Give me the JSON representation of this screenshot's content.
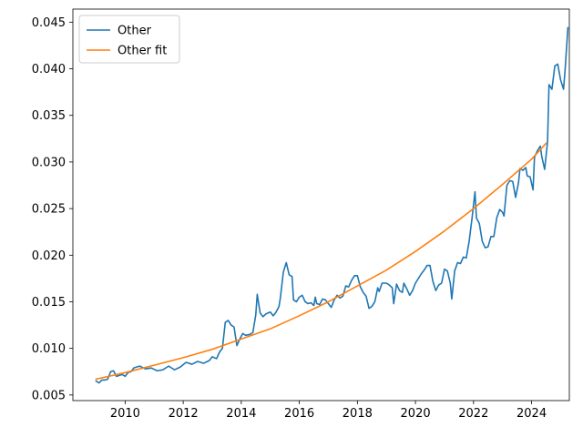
{
  "chart_data": {
    "type": "line",
    "title": "",
    "xlabel": "",
    "ylabel": "",
    "xlim": [
      2008.2,
      2025.3
    ],
    "ylim": [
      0.0044,
      0.0464
    ],
    "grid": false,
    "legend_position": "top-left",
    "x_ticks": [
      {
        "value": 2010,
        "label": "2010"
      },
      {
        "value": 2012,
        "label": "2012"
      },
      {
        "value": 2014,
        "label": "2014"
      },
      {
        "value": 2016,
        "label": "2016"
      },
      {
        "value": 2018,
        "label": "2018"
      },
      {
        "value": 2020,
        "label": "2020"
      },
      {
        "value": 2022,
        "label": "2022"
      },
      {
        "value": 2024,
        "label": "2024"
      }
    ],
    "y_ticks": [
      {
        "value": 0.005,
        "label": "0.005"
      },
      {
        "value": 0.01,
        "label": "0.010"
      },
      {
        "value": 0.015,
        "label": "0.015"
      },
      {
        "value": 0.02,
        "label": "0.020"
      },
      {
        "value": 0.025,
        "label": "0.025"
      },
      {
        "value": 0.03,
        "label": "0.030"
      },
      {
        "value": 0.035,
        "label": "0.035"
      },
      {
        "value": 0.04,
        "label": "0.040"
      },
      {
        "value": 0.045,
        "label": "0.045"
      }
    ],
    "series": [
      {
        "name": "Other",
        "color": "#1f77b4",
        "points": [
          [
            2009.0,
            0.0065
          ],
          [
            2009.1,
            0.0063
          ],
          [
            2009.2,
            0.0066
          ],
          [
            2009.3,
            0.0066
          ],
          [
            2009.4,
            0.0067
          ],
          [
            2009.5,
            0.0075
          ],
          [
            2009.6,
            0.0076
          ],
          [
            2009.7,
            0.007
          ],
          [
            2009.8,
            0.0071
          ],
          [
            2009.9,
            0.0072
          ],
          [
            2010.0,
            0.007
          ],
          [
            2010.1,
            0.0074
          ],
          [
            2010.2,
            0.0075
          ],
          [
            2010.3,
            0.0079
          ],
          [
            2010.5,
            0.0081
          ],
          [
            2010.7,
            0.0078
          ],
          [
            2010.9,
            0.0079
          ],
          [
            2011.1,
            0.0076
          ],
          [
            2011.3,
            0.0077
          ],
          [
            2011.5,
            0.0081
          ],
          [
            2011.7,
            0.0077
          ],
          [
            2011.9,
            0.008
          ],
          [
            2012.1,
            0.0085
          ],
          [
            2012.3,
            0.0083
          ],
          [
            2012.5,
            0.0086
          ],
          [
            2012.7,
            0.0084
          ],
          [
            2012.9,
            0.0087
          ],
          [
            2013.0,
            0.0091
          ],
          [
            2013.15,
            0.0089
          ],
          [
            2013.25,
            0.0096
          ],
          [
            2013.35,
            0.01
          ],
          [
            2013.45,
            0.0128
          ],
          [
            2013.55,
            0.013
          ],
          [
            2013.65,
            0.0125
          ],
          [
            2013.75,
            0.0123
          ],
          [
            2013.85,
            0.0103
          ],
          [
            2013.95,
            0.011
          ],
          [
            2014.05,
            0.0116
          ],
          [
            2014.15,
            0.0114
          ],
          [
            2014.3,
            0.0115
          ],
          [
            2014.4,
            0.0117
          ],
          [
            2014.5,
            0.0136
          ],
          [
            2014.55,
            0.0158
          ],
          [
            2014.65,
            0.0138
          ],
          [
            2014.75,
            0.0134
          ],
          [
            2014.85,
            0.0137
          ],
          [
            2015.0,
            0.0139
          ],
          [
            2015.1,
            0.0135
          ],
          [
            2015.2,
            0.0139
          ],
          [
            2015.3,
            0.0145
          ],
          [
            2015.35,
            0.0155
          ],
          [
            2015.45,
            0.0182
          ],
          [
            2015.55,
            0.0192
          ],
          [
            2015.65,
            0.0179
          ],
          [
            2015.75,
            0.0177
          ],
          [
            2015.8,
            0.0152
          ],
          [
            2015.9,
            0.015
          ],
          [
            2016.0,
            0.0155
          ],
          [
            2016.1,
            0.0157
          ],
          [
            2016.2,
            0.015
          ],
          [
            2016.3,
            0.0148
          ],
          [
            2016.4,
            0.0149
          ],
          [
            2016.5,
            0.0146
          ],
          [
            2016.55,
            0.0155
          ],
          [
            2016.6,
            0.0148
          ],
          [
            2016.7,
            0.0147
          ],
          [
            2016.8,
            0.0153
          ],
          [
            2016.9,
            0.0152
          ],
          [
            2017.0,
            0.0148
          ],
          [
            2017.1,
            0.0144
          ],
          [
            2017.2,
            0.0152
          ],
          [
            2017.3,
            0.0157
          ],
          [
            2017.4,
            0.0154
          ],
          [
            2017.5,
            0.0156
          ],
          [
            2017.6,
            0.0167
          ],
          [
            2017.7,
            0.0166
          ],
          [
            2017.8,
            0.0173
          ],
          [
            2017.9,
            0.0178
          ],
          [
            2018.0,
            0.0178
          ],
          [
            2018.1,
            0.0166
          ],
          [
            2018.2,
            0.016
          ],
          [
            2018.3,
            0.0156
          ],
          [
            2018.4,
            0.0143
          ],
          [
            2018.5,
            0.0145
          ],
          [
            2018.6,
            0.015
          ],
          [
            2018.7,
            0.0165
          ],
          [
            2018.75,
            0.0161
          ],
          [
            2018.85,
            0.017
          ],
          [
            2019.0,
            0.017
          ],
          [
            2019.1,
            0.0168
          ],
          [
            2019.2,
            0.0165
          ],
          [
            2019.25,
            0.0148
          ],
          [
            2019.35,
            0.0169
          ],
          [
            2019.45,
            0.0162
          ],
          [
            2019.55,
            0.016
          ],
          [
            2019.6,
            0.017
          ],
          [
            2019.7,
            0.0164
          ],
          [
            2019.8,
            0.0157
          ],
          [
            2019.9,
            0.0162
          ],
          [
            2020.0,
            0.017
          ],
          [
            2020.1,
            0.0175
          ],
          [
            2020.2,
            0.018
          ],
          [
            2020.3,
            0.0184
          ],
          [
            2020.4,
            0.0189
          ],
          [
            2020.5,
            0.0189
          ],
          [
            2020.6,
            0.0172
          ],
          [
            2020.7,
            0.0162
          ],
          [
            2020.8,
            0.0168
          ],
          [
            2020.9,
            0.017
          ],
          [
            2021.0,
            0.0185
          ],
          [
            2021.1,
            0.0183
          ],
          [
            2021.2,
            0.017
          ],
          [
            2021.25,
            0.0153
          ],
          [
            2021.35,
            0.0183
          ],
          [
            2021.45,
            0.0192
          ],
          [
            2021.55,
            0.0191
          ],
          [
            2021.65,
            0.0198
          ],
          [
            2021.75,
            0.0197
          ],
          [
            2021.85,
            0.0215
          ],
          [
            2021.95,
            0.024
          ],
          [
            2022.05,
            0.0268
          ],
          [
            2022.1,
            0.024
          ],
          [
            2022.2,
            0.0234
          ],
          [
            2022.3,
            0.0215
          ],
          [
            2022.4,
            0.0208
          ],
          [
            2022.5,
            0.0209
          ],
          [
            2022.6,
            0.022
          ],
          [
            2022.7,
            0.022
          ],
          [
            2022.8,
            0.024
          ],
          [
            2022.9,
            0.0249
          ],
          [
            2023.0,
            0.0246
          ],
          [
            2023.05,
            0.0242
          ],
          [
            2023.15,
            0.0275
          ],
          [
            2023.25,
            0.028
          ],
          [
            2023.35,
            0.0279
          ],
          [
            2023.45,
            0.0262
          ],
          [
            2023.55,
            0.0278
          ],
          [
            2023.6,
            0.0293
          ],
          [
            2023.7,
            0.0291
          ],
          [
            2023.8,
            0.0294
          ],
          [
            2023.85,
            0.0285
          ],
          [
            2023.95,
            0.0284
          ],
          [
            2024.05,
            0.027
          ],
          [
            2024.1,
            0.0305
          ],
          [
            2024.2,
            0.0312
          ],
          [
            2024.3,
            0.0317
          ],
          [
            2024.35,
            0.0306
          ],
          [
            2024.45,
            0.0292
          ],
          [
            2024.55,
            0.0322
          ],
          [
            2024.6,
            0.0383
          ],
          [
            2024.7,
            0.0378
          ],
          [
            2024.8,
            0.0403
          ],
          [
            2024.9,
            0.0405
          ],
          [
            2025.0,
            0.0388
          ],
          [
            2025.1,
            0.0378
          ],
          [
            2025.15,
            0.0397
          ],
          [
            2025.25,
            0.0444
          ]
        ]
      },
      {
        "name": "Other fit",
        "color": "#ff7f0e",
        "points": [
          [
            2009.0,
            0.0067
          ],
          [
            2010.0,
            0.0074
          ],
          [
            2011.0,
            0.0082
          ],
          [
            2012.0,
            0.009
          ],
          [
            2013.0,
            0.0099
          ],
          [
            2014.0,
            0.011
          ],
          [
            2015.0,
            0.0121
          ],
          [
            2016.0,
            0.0135
          ],
          [
            2017.0,
            0.015
          ],
          [
            2018.0,
            0.0167
          ],
          [
            2019.0,
            0.0184
          ],
          [
            2020.0,
            0.0204
          ],
          [
            2021.0,
            0.0226
          ],
          [
            2022.0,
            0.025
          ],
          [
            2023.0,
            0.0276
          ],
          [
            2024.0,
            0.0303
          ],
          [
            2024.5,
            0.032
          ]
        ]
      }
    ]
  }
}
